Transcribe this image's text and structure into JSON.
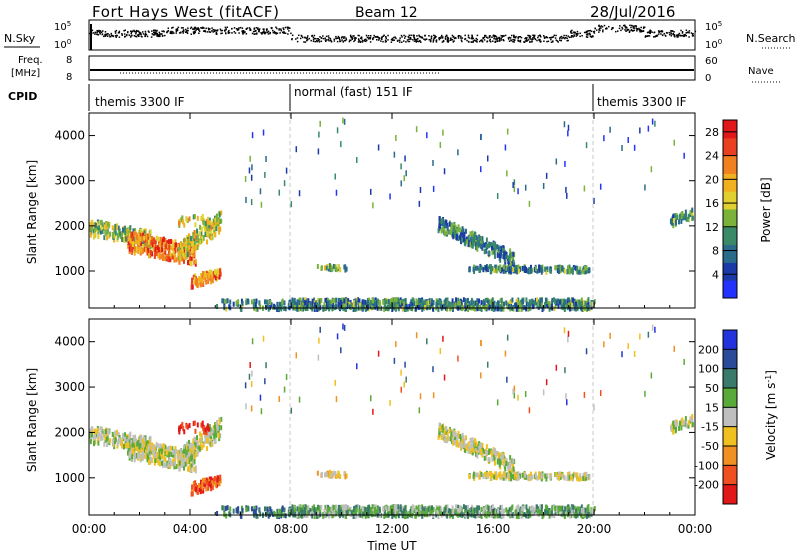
{
  "header": {
    "station": "Fort Hays West (fitACF)",
    "beam": "Beam 12",
    "date": "28/Jul/2016"
  },
  "nsky": {
    "left_label": "N.Sky",
    "right_label": "N.Search",
    "tick_top": "10^5",
    "tick_bottom": "10^0"
  },
  "freq": {
    "label_line1": "Freq.",
    "label_line2": "[MHz]",
    "tick_top": "8",
    "tick_bottom": "8",
    "right_tick_top": "60",
    "right_tick_bottom": "0",
    "right_label": "Nave"
  },
  "cpid": {
    "label": "CPID",
    "segments": [
      {
        "label": "themis 3300 IF",
        "start": 0,
        "end": 8
      },
      {
        "label": "normal (fast) 151 IF",
        "start": 8,
        "end": 20
      },
      {
        "label": "themis 3300 IF",
        "start": 20,
        "end": 24
      }
    ]
  },
  "x_axis": {
    "label": "Time UT",
    "range": [
      0,
      24
    ],
    "ticks": [
      0,
      4,
      8,
      12,
      16,
      20,
      24
    ],
    "tick_labels": [
      "00:00",
      "04:00",
      "08:00",
      "12:00",
      "16:00",
      "20:00",
      "00:00"
    ]
  },
  "chart_data": [
    {
      "type": "heatmap",
      "name": "power",
      "ylabel": "Slant Range [km]",
      "ylim": [
        180,
        4500
      ],
      "yticks": [
        1000,
        2000,
        3000,
        4000
      ],
      "colorbar": {
        "label": "Power [dB]",
        "range": [
          0,
          30
        ],
        "ticks": [
          4,
          8,
          12,
          16,
          20,
          24,
          28
        ],
        "bands": [
          "#2233ff",
          "#1a3aa8",
          "#2a6a8a",
          "#3a8a6a",
          "#7ab23a",
          "#e0d030",
          "#f0b020",
          "#f08020",
          "#e84020",
          "#e01818"
        ]
      }
    },
    {
      "type": "heatmap",
      "name": "velocity",
      "ylabel": "Slant Range [km]",
      "ylim": [
        180,
        4500
      ],
      "yticks": [
        1000,
        2000,
        3000,
        4000
      ],
      "colorbar": {
        "label": "Velocity [m s^-1]",
        "tick_labels": [
          "200",
          "100",
          "50",
          "15",
          "-15",
          "-50",
          "-100",
          "-200"
        ],
        "bands": [
          "#2233dd",
          "#2a4a9a",
          "#3a7a6a",
          "#5aaa3a",
          "#bfbfbf",
          "#f0c020",
          "#f09020",
          "#f05020",
          "#e01818"
        ]
      }
    }
  ],
  "colors": {
    "axis": "#000000",
    "dashed_mode_line": "#c8c8c8"
  }
}
